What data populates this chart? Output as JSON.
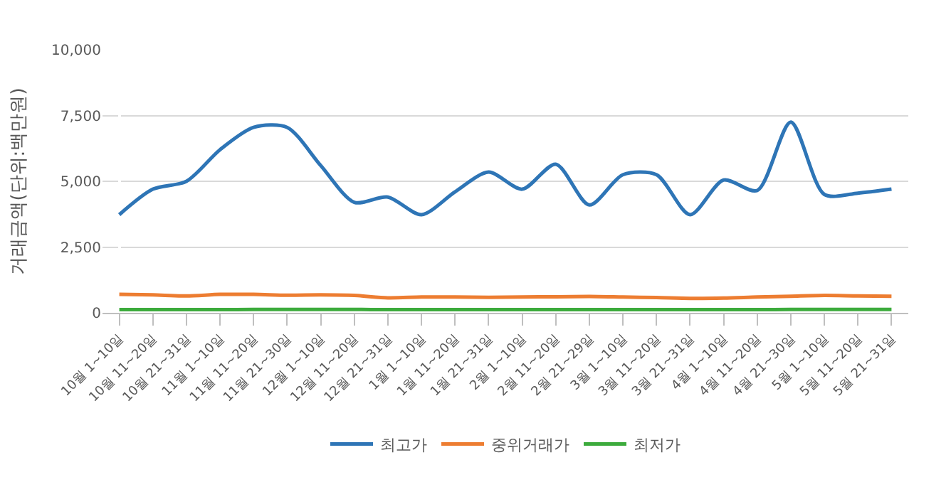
{
  "chart_data": {
    "type": "line",
    "ylabel": "거래금액(단위:백만원)",
    "categories": [
      "10월 1~10일",
      "10월 11~20일",
      "10월 21~31일",
      "11월 1~10일",
      "11월 11~20일",
      "11월 21~30일",
      "12월 1~10일",
      "12월 11~20일",
      "12월 21~31일",
      "1월 1~10일",
      "1월 11~20일",
      "1월 21~31일",
      "2월 1~10일",
      "2월 11~20일",
      "2월 21~29일",
      "3월 1~10일",
      "3월 11~20일",
      "3월 21~31일",
      "4월 1~10일",
      "4월 11~20일",
      "4월 21~30일",
      "5월 1~10일",
      "5월 11~20일",
      "5월 21~31일"
    ],
    "series": [
      {
        "name": "최고가",
        "color": "#2e75b6",
        "values": [
          3730,
          4700,
          5000,
          6200,
          7050,
          7050,
          5600,
          4200,
          4400,
          3730,
          4600,
          5350,
          4700,
          5650,
          4100,
          5250,
          5250,
          3730,
          5050,
          4650,
          7250,
          4500,
          4550,
          4700
        ]
      },
      {
        "name": "중위거래가",
        "color": "#ed7d31",
        "values": [
          700,
          680,
          640,
          700,
          700,
          670,
          680,
          660,
          570,
          600,
          600,
          590,
          600,
          610,
          620,
          600,
          580,
          550,
          560,
          600,
          630,
          660,
          640,
          630
        ]
      },
      {
        "name": "최저가",
        "color": "#3cab3c",
        "values": [
          120,
          120,
          120,
          120,
          130,
          130,
          130,
          130,
          120,
          120,
          120,
          120,
          120,
          120,
          120,
          120,
          120,
          120,
          120,
          120,
          130,
          130,
          130,
          130
        ]
      }
    ],
    "ylim": [
      0,
      10000
    ],
    "yticks": [
      {
        "value": 0,
        "label": "0"
      },
      {
        "value": 2500,
        "label": "2,500"
      },
      {
        "value": 5000,
        "label": "5,000"
      },
      {
        "value": 7500,
        "label": "7,500"
      },
      {
        "value": 10000,
        "label": "10,000"
      }
    ],
    "grid": "y",
    "legend": "bottom",
    "marker": "none",
    "line_style": "solid"
  }
}
